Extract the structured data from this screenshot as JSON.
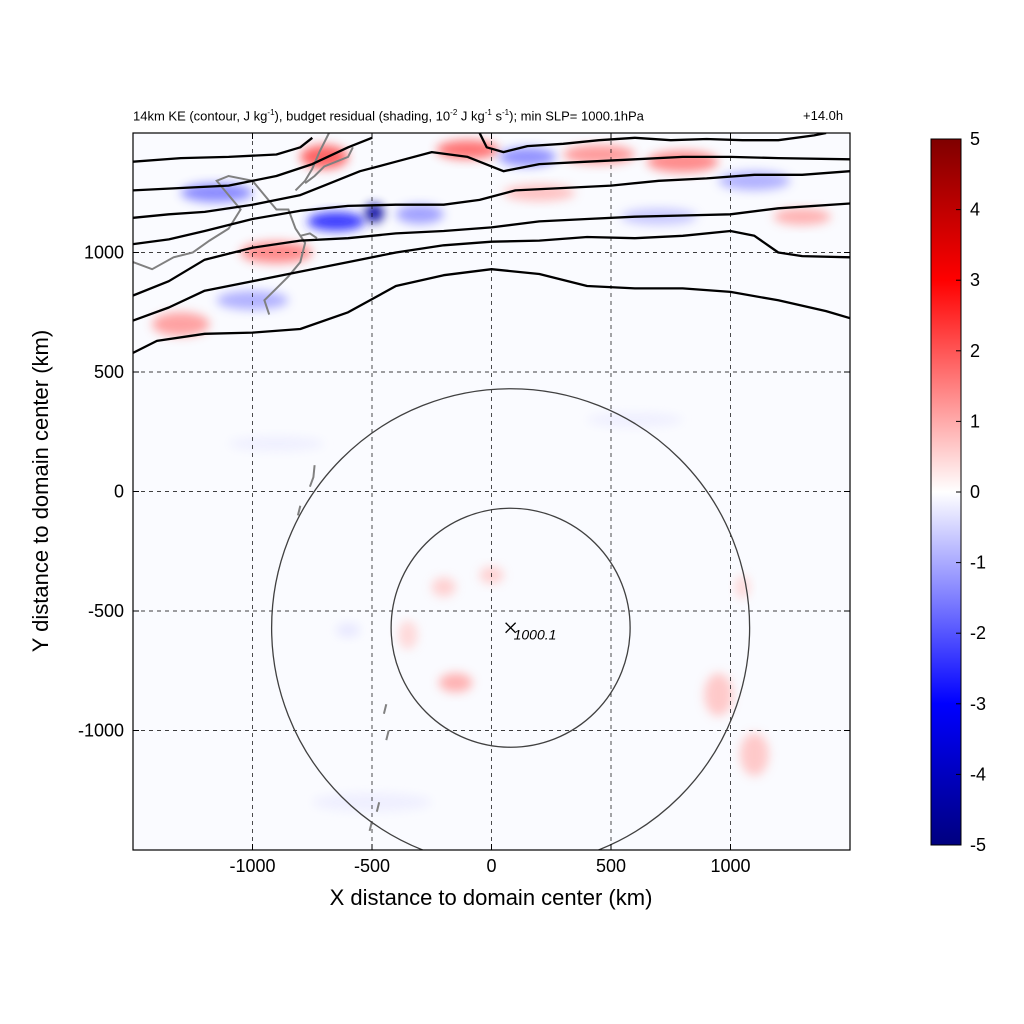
{
  "title_left": {
    "part1": "14km KE (contour, J kg",
    "sup1": "-1",
    "part2": "), budget residual (shading, 10",
    "sup2": "-2",
    "part3": " J kg",
    "sup3": "-1",
    "part4": " s",
    "sup4": "-1",
    "part5": "); min SLP= 1000.1hPa"
  },
  "title_right": "+14.0h",
  "colors": {
    "positive_max": "#7f0000",
    "positive": "#ff0000",
    "zero": "#ffffff",
    "negative": "#0000ff",
    "negative_max": "#00007f",
    "ke_contour": "#000000",
    "coastline": "#808080",
    "radius_circle": "#404040"
  },
  "chart_data": {
    "type": "heatmap",
    "xlabel": "X distance to domain center (km)",
    "ylabel": "Y distance to domain center (km)",
    "xlim": [
      -1500,
      1500
    ],
    "ylim": [
      -1500,
      1500
    ],
    "xticks": [
      -1000,
      -500,
      0,
      500,
      1000
    ],
    "yticks": [
      -1000,
      -500,
      0,
      500,
      1000
    ],
    "grid": true,
    "colorbar": {
      "range": [
        -5,
        5
      ],
      "ticks": [
        5,
        4,
        3,
        2,
        1,
        0,
        -1,
        -2,
        -3,
        -4,
        -5
      ],
      "placement": "right"
    },
    "center_marker": {
      "x": 80,
      "y": -570,
      "label": "1000.1"
    },
    "radius_circles": [
      {
        "center_x": 80,
        "center_y": -570,
        "radius_km": 500
      },
      {
        "center_x": 80,
        "center_y": -570,
        "radius_km": 1000
      }
    ],
    "ke_contours": [
      [
        [
          -1500,
          580
        ],
        [
          -1400,
          630
        ],
        [
          -1200,
          660
        ],
        [
          -1000,
          665
        ],
        [
          -800,
          680
        ],
        [
          -600,
          750
        ],
        [
          -400,
          860
        ],
        [
          -200,
          905
        ],
        [
          0,
          930
        ],
        [
          200,
          910
        ],
        [
          400,
          860
        ],
        [
          600,
          850
        ],
        [
          800,
          850
        ],
        [
          1000,
          835
        ],
        [
          1200,
          800
        ],
        [
          1400,
          755
        ],
        [
          1500,
          725
        ]
      ],
      [
        [
          -1500,
          715
        ],
        [
          -1350,
          770
        ],
        [
          -1200,
          840
        ],
        [
          -1000,
          880
        ],
        [
          -800,
          920
        ],
        [
          -600,
          960
        ],
        [
          -400,
          1000
        ],
        [
          -200,
          1030
        ],
        [
          0,
          1045
        ],
        [
          200,
          1050
        ],
        [
          400,
          1065
        ],
        [
          600,
          1060
        ],
        [
          800,
          1070
        ],
        [
          1000,
          1090
        ],
        [
          1100,
          1070
        ],
        [
          1200,
          1000
        ],
        [
          1300,
          985
        ],
        [
          1500,
          980
        ]
      ],
      [
        [
          -1500,
          820
        ],
        [
          -1350,
          880
        ],
        [
          -1200,
          970
        ],
        [
          -1000,
          1020
        ],
        [
          -800,
          1050
        ],
        [
          -600,
          1060
        ],
        [
          -400,
          1080
        ],
        [
          -200,
          1090
        ],
        [
          0,
          1105
        ],
        [
          200,
          1130
        ],
        [
          400,
          1140
        ],
        [
          600,
          1150
        ],
        [
          800,
          1155
        ],
        [
          1000,
          1160
        ],
        [
          1200,
          1185
        ],
        [
          1500,
          1205
        ]
      ],
      [
        [
          -1500,
          1035
        ],
        [
          -1350,
          1055
        ],
        [
          -1200,
          1090
        ],
        [
          -1000,
          1140
        ],
        [
          -800,
          1175
        ],
        [
          -600,
          1195
        ],
        [
          -400,
          1200
        ],
        [
          -200,
          1200
        ],
        [
          -50,
          1220
        ],
        [
          100,
          1260
        ],
        [
          300,
          1270
        ],
        [
          500,
          1280
        ],
        [
          700,
          1300
        ],
        [
          900,
          1310
        ],
        [
          1100,
          1325
        ],
        [
          1300,
          1325
        ],
        [
          1500,
          1340
        ]
      ],
      [
        [
          -1500,
          1145
        ],
        [
          -1350,
          1160
        ],
        [
          -1200,
          1170
        ],
        [
          -1000,
          1200
        ],
        [
          -800,
          1240
        ],
        [
          -700,
          1280
        ],
        [
          -550,
          1340
        ],
        [
          -400,
          1380
        ],
        [
          -250,
          1420
        ],
        [
          -100,
          1400
        ],
        [
          50,
          1340
        ],
        [
          200,
          1370
        ],
        [
          400,
          1380
        ],
        [
          600,
          1390
        ],
        [
          800,
          1400
        ],
        [
          1000,
          1400
        ],
        [
          1200,
          1395
        ],
        [
          1500,
          1390
        ]
      ],
      [
        [
          -1500,
          1260
        ],
        [
          -1300,
          1270
        ],
        [
          -1100,
          1280
        ],
        [
          -900,
          1320
        ],
        [
          -750,
          1370
        ],
        [
          -600,
          1440
        ],
        [
          -500,
          1480
        ]
      ],
      [
        [
          -1500,
          1380
        ],
        [
          -1300,
          1395
        ],
        [
          -1100,
          1400
        ],
        [
          -900,
          1410
        ],
        [
          -800,
          1440
        ],
        [
          -750,
          1480
        ]
      ],
      [
        [
          -50,
          1500
        ],
        [
          -20,
          1440
        ],
        [
          50,
          1420
        ],
        [
          150,
          1445
        ],
        [
          300,
          1455
        ],
        [
          450,
          1470
        ],
        [
          600,
          1480
        ],
        [
          750,
          1470
        ],
        [
          900,
          1475
        ],
        [
          1050,
          1470
        ],
        [
          1200,
          1470
        ],
        [
          1350,
          1490
        ],
        [
          1400,
          1500
        ]
      ]
    ],
    "residual_features": [
      {
        "x": -1150,
        "y": 1250,
        "rx": 150,
        "ry": 40,
        "value": -1.5
      },
      {
        "x": -650,
        "y": 1130,
        "rx": 120,
        "ry": 40,
        "value": -2.5
      },
      {
        "x": -490,
        "y": 1165,
        "rx": 40,
        "ry": 40,
        "value": -4.5
      },
      {
        "x": -300,
        "y": 1160,
        "rx": 100,
        "ry": 40,
        "value": -1.2
      },
      {
        "x": -700,
        "y": 1400,
        "rx": 100,
        "ry": 50,
        "value": 2.0
      },
      {
        "x": -900,
        "y": 1000,
        "rx": 150,
        "ry": 45,
        "value": 1.5
      },
      {
        "x": -1300,
        "y": 700,
        "rx": 120,
        "ry": 50,
        "value": 1.2
      },
      {
        "x": -1000,
        "y": 800,
        "rx": 150,
        "ry": 40,
        "value": -1.0
      },
      {
        "x": -100,
        "y": 1430,
        "rx": 130,
        "ry": 40,
        "value": 1.8
      },
      {
        "x": 150,
        "y": 1400,
        "rx": 120,
        "ry": 40,
        "value": -1.4
      },
      {
        "x": 450,
        "y": 1410,
        "rx": 150,
        "ry": 40,
        "value": 1.3
      },
      {
        "x": 800,
        "y": 1380,
        "rx": 150,
        "ry": 45,
        "value": 1.5
      },
      {
        "x": 1100,
        "y": 1300,
        "rx": 150,
        "ry": 40,
        "value": -1.0
      },
      {
        "x": 200,
        "y": 1250,
        "rx": 150,
        "ry": 35,
        "value": 0.8
      },
      {
        "x": 700,
        "y": 1150,
        "rx": 160,
        "ry": 35,
        "value": -0.7
      },
      {
        "x": 1300,
        "y": 1150,
        "rx": 120,
        "ry": 35,
        "value": 1.0
      },
      {
        "x": -150,
        "y": -800,
        "rx": 70,
        "ry": 40,
        "value": 1.0
      },
      {
        "x": -200,
        "y": -400,
        "rx": 50,
        "ry": 40,
        "value": 0.6
      },
      {
        "x": 0,
        "y": -350,
        "rx": 50,
        "ry": 35,
        "value": 0.6
      },
      {
        "x": -350,
        "y": -600,
        "rx": 40,
        "ry": 60,
        "value": 0.5
      },
      {
        "x": 950,
        "y": -850,
        "rx": 60,
        "ry": 90,
        "value": 0.7
      },
      {
        "x": 1100,
        "y": -1100,
        "rx": 60,
        "ry": 90,
        "value": 0.7
      },
      {
        "x": 1050,
        "y": -400,
        "rx": 30,
        "ry": 50,
        "value": 0.5
      },
      {
        "x": -600,
        "y": -580,
        "rx": 50,
        "ry": 30,
        "value": -0.3
      },
      {
        "x": -900,
        "y": 200,
        "rx": 200,
        "ry": 30,
        "value": -0.2
      },
      {
        "x": 600,
        "y": 300,
        "rx": 200,
        "ry": 30,
        "value": -0.2
      },
      {
        "x": -500,
        "y": -1300,
        "rx": 250,
        "ry": 40,
        "value": -0.2
      }
    ],
    "coastline": [
      [
        [
          -1500,
          960
        ],
        [
          -1420,
          930
        ],
        [
          -1330,
          980
        ],
        [
          -1250,
          1000
        ],
        [
          -1180,
          1050
        ],
        [
          -1100,
          1100
        ],
        [
          -1050,
          1180
        ],
        [
          -1100,
          1240
        ],
        [
          -1150,
          1300
        ],
        [
          -1100,
          1320
        ],
        [
          -1000,
          1300
        ],
        [
          -950,
          1240
        ],
        [
          -900,
          1180
        ],
        [
          -850,
          1180
        ],
        [
          -820,
          1100
        ],
        [
          -780,
          1040
        ],
        [
          -800,
          960
        ],
        [
          -850,
          900
        ],
        [
          -900,
          850
        ],
        [
          -950,
          800
        ],
        [
          -930,
          740
        ]
      ],
      [
        [
          -820,
          1260
        ],
        [
          -780,
          1300
        ],
        [
          -750,
          1350
        ],
        [
          -720,
          1420
        ],
        [
          -700,
          1460
        ],
        [
          -680,
          1500
        ]
      ],
      [
        [
          -780,
          1290
        ],
        [
          -740,
          1320
        ],
        [
          -700,
          1360
        ],
        [
          -650,
          1380
        ],
        [
          -600,
          1400
        ],
        [
          -580,
          1440
        ]
      ],
      [
        [
          -800,
          1070
        ],
        [
          -760,
          1080
        ],
        [
          -730,
          1060
        ]
      ],
      [
        [
          -740,
          110
        ],
        [
          -745,
          60
        ],
        [
          -760,
          20
        ]
      ],
      [
        [
          -800,
          -60
        ],
        [
          -810,
          -100
        ]
      ],
      [
        [
          -440,
          -890
        ],
        [
          -450,
          -930
        ]
      ],
      [
        [
          -430,
          -1000
        ],
        [
          -440,
          -1040
        ]
      ],
      [
        [
          -470,
          -1300
        ],
        [
          -480,
          -1340
        ]
      ],
      [
        [
          -500,
          -1380
        ],
        [
          -510,
          -1420
        ]
      ]
    ]
  }
}
